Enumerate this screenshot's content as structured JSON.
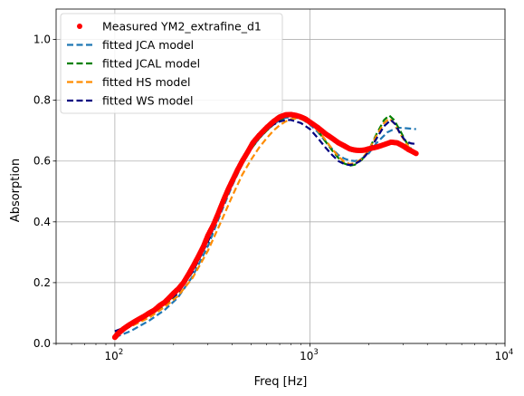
{
  "chart_data": {
    "type": "line",
    "xlabel": "Freq [Hz]",
    "ylabel": "Absorption",
    "xscale": "log",
    "xlim": [
      50,
      10000
    ],
    "ylim": [
      0.0,
      1.1
    ],
    "grid": true,
    "legend_position": "top-left",
    "xticks": [
      {
        "value": 100,
        "base": "10",
        "exp": "2"
      },
      {
        "value": 1000,
        "base": "10",
        "exp": "3"
      },
      {
        "value": 10000,
        "base": "10",
        "exp": "4"
      }
    ],
    "yticks": [
      {
        "value": 0.0,
        "label": "0.0"
      },
      {
        "value": 0.2,
        "label": "0.2"
      },
      {
        "value": 0.4,
        "label": "0.4"
      },
      {
        "value": 0.6,
        "label": "0.6"
      },
      {
        "value": 0.8,
        "label": "0.8"
      },
      {
        "value": 1.0,
        "label": "1.0"
      }
    ],
    "measured": {
      "name": "Measured YM2_extrafine_d1",
      "color": "#ff0000",
      "points": [
        [
          100,
          0.02
        ],
        [
          103,
          0.03
        ],
        [
          107,
          0.04
        ],
        [
          112,
          0.05
        ],
        [
          118,
          0.06
        ],
        [
          125,
          0.07
        ],
        [
          133,
          0.08
        ],
        [
          142,
          0.09
        ],
        [
          150,
          0.1
        ],
        [
          160,
          0.11
        ],
        [
          170,
          0.125
        ],
        [
          180,
          0.135
        ],
        [
          190,
          0.15
        ],
        [
          200,
          0.165
        ],
        [
          212,
          0.18
        ],
        [
          225,
          0.2
        ],
        [
          240,
          0.23
        ],
        [
          255,
          0.26
        ],
        [
          270,
          0.29
        ],
        [
          285,
          0.32
        ],
        [
          300,
          0.355
        ],
        [
          320,
          0.39
        ],
        [
          340,
          0.43
        ],
        [
          360,
          0.47
        ],
        [
          380,
          0.505
        ],
        [
          400,
          0.535
        ],
        [
          425,
          0.57
        ],
        [
          450,
          0.6
        ],
        [
          480,
          0.63
        ],
        [
          510,
          0.66
        ],
        [
          550,
          0.685
        ],
        [
          600,
          0.71
        ],
        [
          650,
          0.73
        ],
        [
          700,
          0.745
        ],
        [
          750,
          0.752
        ],
        [
          800,
          0.753
        ],
        [
          850,
          0.75
        ],
        [
          900,
          0.745
        ],
        [
          950,
          0.738
        ],
        [
          1000,
          0.728
        ],
        [
          1100,
          0.71
        ],
        [
          1200,
          0.69
        ],
        [
          1300,
          0.675
        ],
        [
          1400,
          0.66
        ],
        [
          1500,
          0.65
        ],
        [
          1600,
          0.64
        ],
        [
          1700,
          0.636
        ],
        [
          1800,
          0.635
        ],
        [
          1900,
          0.636
        ],
        [
          2000,
          0.64
        ],
        [
          2200,
          0.646
        ],
        [
          2400,
          0.654
        ],
        [
          2600,
          0.662
        ],
        [
          2800,
          0.66
        ],
        [
          3000,
          0.65
        ],
        [
          3200,
          0.638
        ],
        [
          3500,
          0.625
        ]
      ]
    },
    "series": [
      {
        "name": "fitted JCA model",
        "color": "#1f77b4",
        "points": [
          [
            100,
            0.02
          ],
          [
            120,
            0.04
          ],
          [
            150,
            0.075
          ],
          [
            180,
            0.11
          ],
          [
            210,
            0.15
          ],
          [
            250,
            0.22
          ],
          [
            300,
            0.32
          ],
          [
            350,
            0.43
          ],
          [
            400,
            0.52
          ],
          [
            450,
            0.59
          ],
          [
            500,
            0.64
          ],
          [
            550,
            0.675
          ],
          [
            600,
            0.7
          ],
          [
            650,
            0.72
          ],
          [
            700,
            0.735
          ],
          [
            750,
            0.742
          ],
          [
            800,
            0.745
          ],
          [
            900,
            0.74
          ],
          [
            1000,
            0.72
          ],
          [
            1100,
            0.695
          ],
          [
            1200,
            0.665
          ],
          [
            1300,
            0.64
          ],
          [
            1400,
            0.62
          ],
          [
            1500,
            0.608
          ],
          [
            1600,
            0.602
          ],
          [
            1700,
            0.6
          ],
          [
            1800,
            0.603
          ],
          [
            2000,
            0.625
          ],
          [
            2200,
            0.66
          ],
          [
            2500,
            0.695
          ],
          [
            2800,
            0.71
          ],
          [
            3100,
            0.708
          ],
          [
            3500,
            0.705
          ]
        ]
      },
      {
        "name": "fitted JCAL model",
        "color": "#008000",
        "points": [
          [
            100,
            0.04
          ],
          [
            120,
            0.055
          ],
          [
            150,
            0.09
          ],
          [
            180,
            0.125
          ],
          [
            210,
            0.165
          ],
          [
            250,
            0.235
          ],
          [
            300,
            0.335
          ],
          [
            350,
            0.44
          ],
          [
            400,
            0.525
          ],
          [
            450,
            0.59
          ],
          [
            500,
            0.64
          ],
          [
            550,
            0.675
          ],
          [
            600,
            0.7
          ],
          [
            650,
            0.72
          ],
          [
            700,
            0.735
          ],
          [
            750,
            0.745
          ],
          [
            800,
            0.75
          ],
          [
            850,
            0.752
          ],
          [
            900,
            0.748
          ],
          [
            1000,
            0.73
          ],
          [
            1100,
            0.7
          ],
          [
            1200,
            0.665
          ],
          [
            1300,
            0.635
          ],
          [
            1400,
            0.61
          ],
          [
            1500,
            0.592
          ],
          [
            1600,
            0.585
          ],
          [
            1700,
            0.588
          ],
          [
            1850,
            0.605
          ],
          [
            2000,
            0.635
          ],
          [
            2200,
            0.69
          ],
          [
            2400,
            0.735
          ],
          [
            2550,
            0.75
          ],
          [
            2700,
            0.735
          ],
          [
            2900,
            0.7
          ],
          [
            3100,
            0.665
          ],
          [
            3300,
            0.64
          ],
          [
            3500,
            0.625
          ]
        ]
      },
      {
        "name": "fitted HS model",
        "color": "#ff8c00",
        "points": [
          [
            100,
            0.04
          ],
          [
            120,
            0.055
          ],
          [
            150,
            0.085
          ],
          [
            180,
            0.12
          ],
          [
            210,
            0.155
          ],
          [
            250,
            0.215
          ],
          [
            300,
            0.305
          ],
          [
            350,
            0.4
          ],
          [
            400,
            0.485
          ],
          [
            450,
            0.555
          ],
          [
            500,
            0.605
          ],
          [
            550,
            0.645
          ],
          [
            600,
            0.675
          ],
          [
            650,
            0.7
          ],
          [
            700,
            0.718
          ],
          [
            750,
            0.73
          ],
          [
            800,
            0.738
          ],
          [
            850,
            0.74
          ],
          [
            900,
            0.738
          ],
          [
            1000,
            0.725
          ],
          [
            1100,
            0.7
          ],
          [
            1200,
            0.67
          ],
          [
            1300,
            0.64
          ],
          [
            1400,
            0.615
          ],
          [
            1500,
            0.598
          ],
          [
            1600,
            0.59
          ],
          [
            1700,
            0.593
          ],
          [
            1850,
            0.608
          ],
          [
            2000,
            0.635
          ],
          [
            2200,
            0.685
          ],
          [
            2400,
            0.725
          ],
          [
            2550,
            0.74
          ],
          [
            2700,
            0.725
          ],
          [
            2900,
            0.69
          ],
          [
            3100,
            0.66
          ],
          [
            3300,
            0.635
          ],
          [
            3500,
            0.62
          ]
        ]
      },
      {
        "name": "fitted WS model",
        "color": "#000080",
        "points": [
          [
            100,
            0.04
          ],
          [
            120,
            0.06
          ],
          [
            150,
            0.095
          ],
          [
            180,
            0.13
          ],
          [
            210,
            0.165
          ],
          [
            250,
            0.235
          ],
          [
            300,
            0.335
          ],
          [
            350,
            0.44
          ],
          [
            400,
            0.525
          ],
          [
            450,
            0.595
          ],
          [
            500,
            0.645
          ],
          [
            550,
            0.68
          ],
          [
            600,
            0.705
          ],
          [
            650,
            0.72
          ],
          [
            700,
            0.73
          ],
          [
            750,
            0.735
          ],
          [
            800,
            0.735
          ],
          [
            900,
            0.725
          ],
          [
            1000,
            0.705
          ],
          [
            1100,
            0.675
          ],
          [
            1200,
            0.645
          ],
          [
            1300,
            0.62
          ],
          [
            1400,
            0.6
          ],
          [
            1500,
            0.59
          ],
          [
            1600,
            0.587
          ],
          [
            1700,
            0.59
          ],
          [
            1850,
            0.605
          ],
          [
            2000,
            0.63
          ],
          [
            2200,
            0.675
          ],
          [
            2400,
            0.715
          ],
          [
            2600,
            0.735
          ],
          [
            2750,
            0.72
          ],
          [
            2900,
            0.69
          ],
          [
            3100,
            0.665
          ],
          [
            3300,
            0.658
          ],
          [
            3500,
            0.656
          ]
        ]
      }
    ]
  }
}
